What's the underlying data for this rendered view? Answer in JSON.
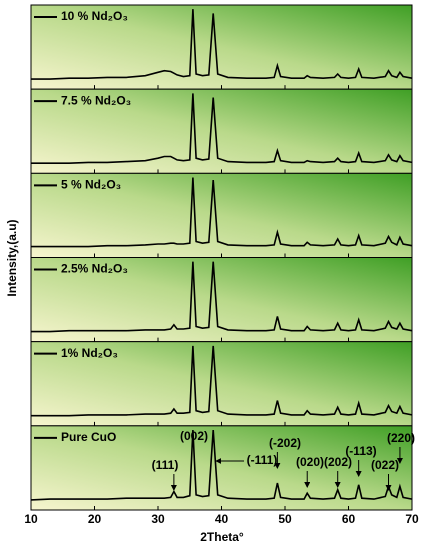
{
  "chart_data": {
    "type": "line",
    "xlabel": "2Theta°",
    "ylabel": "Intensity,(a.u)",
    "xlim": [
      10,
      70
    ],
    "xticks": [
      10,
      20,
      30,
      40,
      50,
      60,
      70
    ],
    "ylim": [
      0,
      100
    ],
    "x": [
      10,
      13,
      16,
      19,
      22,
      25,
      28,
      30,
      31,
      32,
      32.5,
      33,
      34,
      35,
      35.5,
      36,
      37,
      38,
      38.7,
      39.4,
      41,
      44,
      47,
      48.3,
      48.8,
      49.3,
      51,
      53,
      53.5,
      54,
      56,
      57.8,
      58.3,
      58.8,
      60,
      61.1,
      61.6,
      62.1,
      64,
      65.8,
      66.3,
      66.8,
      67.6,
      68.1,
      68.6,
      70
    ],
    "series": [
      {
        "name": "10 % Nd₂O₃",
        "color": "#000000",
        "values": [
          12,
          12,
          13,
          13,
          14,
          14,
          16,
          20,
          22,
          21,
          19,
          17,
          15,
          16,
          95,
          18,
          16,
          17,
          90,
          18,
          14,
          13,
          13,
          14,
          28,
          15,
          13,
          13,
          16,
          14,
          13,
          14,
          18,
          14,
          13,
          14,
          24,
          14,
          13,
          15,
          22,
          16,
          14,
          20,
          15,
          13
        ]
      },
      {
        "name": "7.5 % Nd₂O₃",
        "color": "#000000",
        "values": [
          12,
          12,
          12,
          13,
          13,
          14,
          15,
          18,
          20,
          20,
          18,
          16,
          15,
          16,
          95,
          18,
          16,
          17,
          90,
          18,
          14,
          13,
          13,
          14,
          27,
          15,
          13,
          13,
          15,
          14,
          13,
          14,
          18,
          14,
          13,
          14,
          24,
          14,
          13,
          15,
          22,
          16,
          14,
          21,
          15,
          13
        ]
      },
      {
        "name": "5 % Nd₂O₃",
        "color": "#000000",
        "values": [
          13,
          13,
          13,
          13,
          14,
          14,
          15,
          16,
          16,
          17,
          17,
          16,
          16,
          17,
          95,
          19,
          17,
          18,
          92,
          19,
          15,
          14,
          14,
          15,
          30,
          16,
          14,
          14,
          18,
          15,
          14,
          15,
          22,
          15,
          14,
          15,
          26,
          15,
          14,
          17,
          25,
          18,
          15,
          24,
          16,
          14
        ]
      },
      {
        "name": "2.5% Nd₂O₃",
        "color": "#000000",
        "values": [
          12,
          12,
          13,
          13,
          13,
          13,
          14,
          14,
          14,
          15,
          20,
          15,
          15,
          16,
          95,
          18,
          16,
          17,
          95,
          18,
          14,
          13,
          13,
          14,
          30,
          15,
          13,
          13,
          18,
          14,
          13,
          14,
          22,
          14,
          13,
          14,
          26,
          14,
          13,
          16,
          24,
          17,
          15,
          22,
          15,
          13
        ]
      },
      {
        "name": "1% Nd₂O₃",
        "color": "#000000",
        "values": [
          12,
          12,
          12,
          13,
          13,
          13,
          14,
          14,
          14,
          15,
          20,
          15,
          15,
          16,
          95,
          18,
          16,
          17,
          95,
          18,
          14,
          13,
          13,
          14,
          30,
          15,
          13,
          13,
          18,
          14,
          13,
          14,
          22,
          14,
          13,
          14,
          27,
          14,
          13,
          16,
          24,
          17,
          15,
          23,
          15,
          13
        ]
      },
      {
        "name": "Pure CuO",
        "color": "#000000",
        "values": [
          12,
          13,
          13,
          13,
          13,
          14,
          14,
          14,
          14,
          15,
          22,
          15,
          15,
          17,
          95,
          18,
          16,
          17,
          95,
          18,
          14,
          13,
          13,
          14,
          32,
          15,
          13,
          13,
          20,
          14,
          13,
          14,
          24,
          14,
          13,
          14,
          30,
          14,
          13,
          16,
          28,
          18,
          15,
          28,
          15,
          13
        ]
      }
    ],
    "annotations": [
      {
        "text": "(111)",
        "x": 32.5
      },
      {
        "text": "(002)",
        "x": 35.5
      },
      {
        "text": "(-111)",
        "x": 38.7
      },
      {
        "text": "(-202)",
        "x": 48.8
      },
      {
        "text": "(020)",
        "x": 53.5
      },
      {
        "text": "(202)",
        "x": 58.3
      },
      {
        "text": "(-113)",
        "x": 61.6
      },
      {
        "text": "(022)",
        "x": 66.3
      },
      {
        "text": "(220)",
        "x": 68.1
      }
    ]
  }
}
